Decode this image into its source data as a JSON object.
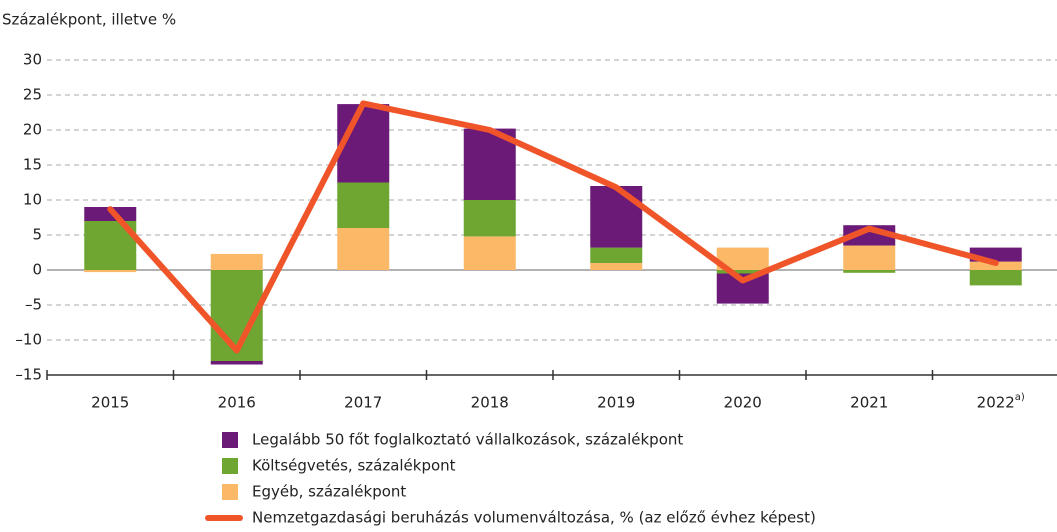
{
  "chart_data": {
    "type": "stacked_bar_line",
    "y_axis_label": "Százalékpont, illetve %",
    "categories": [
      "2015",
      "2016",
      "2017",
      "2018",
      "2019",
      "2020",
      "2021",
      "2022"
    ],
    "category_superscripts": [
      null,
      null,
      null,
      null,
      null,
      null,
      null,
      "a)"
    ],
    "series": [
      {
        "name": "Legalább 50 főt foglalkoztató vállalkozások, százalékpont",
        "color": "#6b1a78",
        "kind": "bar",
        "values": [
          2,
          -0.5,
          11.2,
          10.2,
          8.8,
          -4.3,
          2.9,
          2.0
        ]
      },
      {
        "name": "Költségvetés, százalékpont",
        "color": "#6fa632",
        "kind": "bar",
        "values": [
          7,
          -13,
          6.5,
          5.2,
          2.2,
          -0.5,
          -0.4,
          -2.2
        ]
      },
      {
        "name": "Egyéb, százalékpont",
        "color": "#fbb867",
        "kind": "bar",
        "values": [
          -0.3,
          2.3,
          6,
          4.8,
          1,
          3.2,
          3.5,
          1.2
        ]
      },
      {
        "name": "Nemzetgazdasági beruházás volumenváltozása, % (az előző évhez képest)",
        "color": "#f0552a",
        "kind": "line",
        "values": [
          8.7,
          -11.5,
          23.8,
          20,
          11.8,
          -1.5,
          5.9,
          1
        ]
      }
    ],
    "stack_order": [
      2,
      1,
      0
    ],
    "ylim": [
      -15,
      30
    ],
    "yticks": [
      {
        "value": -15,
        "label": "–15"
      },
      {
        "value": -10,
        "label": "–10"
      },
      {
        "value": -5,
        "label": "–5"
      },
      0,
      5,
      10,
      15,
      20,
      25,
      30
    ],
    "grid": true
  }
}
